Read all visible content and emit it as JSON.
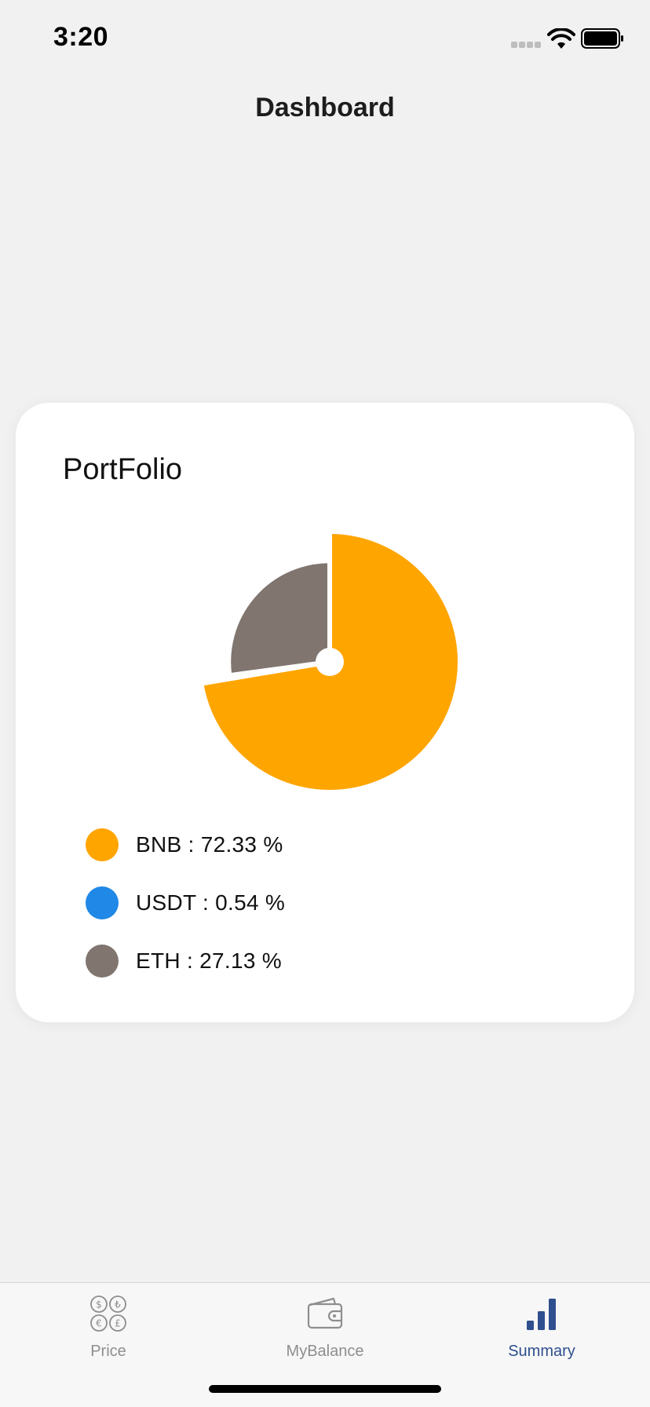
{
  "status_bar": {
    "time": "3:20",
    "icons": [
      "signal-icon",
      "wifi-icon",
      "battery-icon"
    ]
  },
  "header": {
    "title": "Dashboard"
  },
  "portfolio": {
    "title": "PortFolio",
    "chart_data": {
      "type": "pie",
      "title": "",
      "categories": [
        "BNB",
        "USDT",
        "ETH"
      ],
      "values": [
        72.33,
        0.54,
        27.13
      ],
      "colors": [
        "#FFA500",
        "#2088E6",
        "#80756F"
      ],
      "legend_placement": "bottom"
    },
    "legend": [
      {
        "label": "BNB : 72.33 %",
        "color": "#FFA500"
      },
      {
        "label": "USDT : 0.54 %",
        "color": "#2088E6"
      },
      {
        "label": "ETH : 27.13 %",
        "color": "#80756F"
      }
    ]
  },
  "tabs": [
    {
      "label": "Price",
      "icon": "currency-coins-icon",
      "active": false
    },
    {
      "label": "MyBalance",
      "icon": "wallet-icon",
      "active": false
    },
    {
      "label": "Summary",
      "icon": "bar-chart-icon",
      "active": true
    }
  ],
  "colors": {
    "accent": "#2F4F8F",
    "background": "#F1F1F1",
    "card": "#FFFFFF"
  }
}
